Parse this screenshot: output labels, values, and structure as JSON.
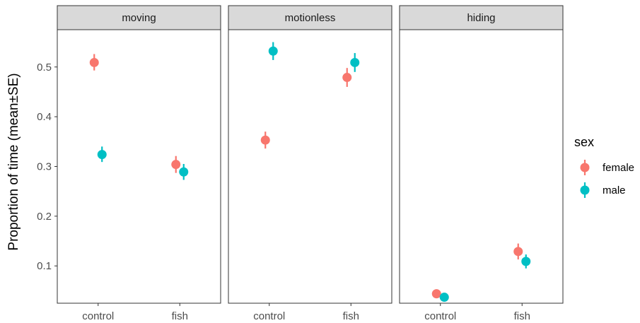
{
  "chart_data": {
    "type": "scatter",
    "facets": [
      "moving",
      "motionless",
      "hiding"
    ],
    "categories": [
      "control",
      "fish"
    ],
    "ylabel": "Proportion of time (mean±SE)",
    "xlabel": "",
    "ylim": [
      0.025,
      0.575
    ],
    "yticks": [
      0.1,
      0.2,
      0.3,
      0.4,
      0.5
    ],
    "ytick_labels": [
      "0.1",
      "0.2",
      "0.3",
      "0.4",
      "0.5"
    ],
    "legend": {
      "title": "sex",
      "position": "right"
    },
    "grid": false,
    "series": [
      {
        "name": "female",
        "color": "#F8766D",
        "values": {
          "moving": {
            "control": {
              "mean": 0.509,
              "lo": 0.493,
              "hi": 0.526
            },
            "fish": {
              "mean": 0.304,
              "lo": 0.287,
              "hi": 0.321
            }
          },
          "motionless": {
            "control": {
              "mean": 0.353,
              "lo": 0.336,
              "hi": 0.37
            },
            "fish": {
              "mean": 0.479,
              "lo": 0.46,
              "hi": 0.498
            }
          },
          "hiding": {
            "control": {
              "mean": 0.044,
              "lo": 0.038,
              "hi": 0.05
            },
            "fish": {
              "mean": 0.129,
              "lo": 0.113,
              "hi": 0.145
            }
          }
        }
      },
      {
        "name": "male",
        "color": "#00BFC4",
        "values": {
          "moving": {
            "control": {
              "mean": 0.324,
              "lo": 0.309,
              "hi": 0.34
            },
            "fish": {
              "mean": 0.289,
              "lo": 0.273,
              "hi": 0.305
            }
          },
          "motionless": {
            "control": {
              "mean": 0.532,
              "lo": 0.514,
              "hi": 0.55
            },
            "fish": {
              "mean": 0.509,
              "lo": 0.49,
              "hi": 0.528
            }
          },
          "hiding": {
            "control": {
              "mean": 0.037,
              "lo": 0.032,
              "hi": 0.043
            },
            "fish": {
              "mean": 0.109,
              "lo": 0.095,
              "hi": 0.123
            }
          }
        }
      }
    ]
  }
}
